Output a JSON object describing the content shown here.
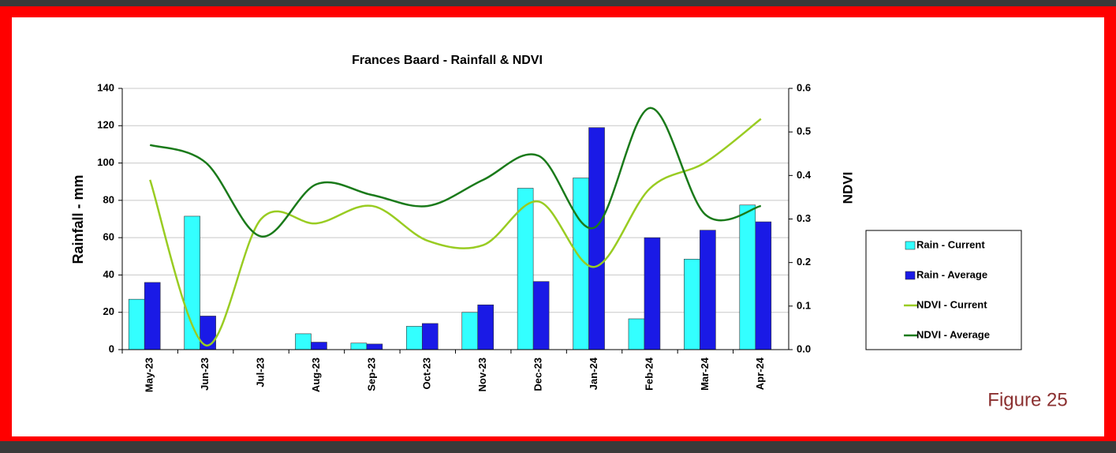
{
  "chart_data": {
    "type": "bar",
    "title": "Frances Baard - Rainfall & NDVI",
    "y_label": "Rainfall - mm",
    "y2_label": "NDVI",
    "annotation": "Figure 25",
    "categories": [
      "May-23",
      "Jun-23",
      "Jul-23",
      "Aug-23",
      "Sep-23",
      "Oct-23",
      "Nov-23",
      "Dec-23",
      "Jan-24",
      "Feb-24",
      "Mar-24",
      "Apr-24"
    ],
    "ylim": [
      0,
      140
    ],
    "yticks": [
      0,
      20,
      40,
      60,
      80,
      100,
      120,
      140
    ],
    "y2lim": [
      0,
      0.6
    ],
    "y2ticks": [
      {
        "value": 0,
        "label": "0.0"
      },
      0.1,
      0.2,
      0.3,
      0.4,
      0.5,
      0.6
    ],
    "grid": true,
    "legend": "right",
    "series": [
      {
        "name": "Rain - Current",
        "type": "bar",
        "color": "#33ffff",
        "values": [
          27,
          71.5,
          0,
          8.5,
          3.5,
          12.5,
          20,
          86.5,
          92,
          16.5,
          48.5,
          77.5
        ]
      },
      {
        "name": "Rain - Average",
        "type": "bar",
        "color": "#1a1ae6",
        "values": [
          36,
          18,
          0,
          4,
          3,
          14,
          24,
          36.5,
          119,
          60,
          64,
          68.5
        ]
      },
      {
        "name": "NDVI - Current",
        "type": "line",
        "axis": "y2",
        "color": "#99cc22",
        "values": [
          0.39,
          0.01,
          0.3,
          0.29,
          0.33,
          0.25,
          0.24,
          0.34,
          0.19,
          0.37,
          0.43,
          0.53
        ]
      },
      {
        "name": "NDVI - Average",
        "type": "line",
        "axis": "y2",
        "color": "#1a7a1a",
        "values": [
          0.47,
          0.43,
          0.26,
          0.38,
          0.355,
          0.33,
          0.39,
          0.445,
          0.28,
          0.555,
          0.31,
          0.33
        ]
      }
    ]
  }
}
